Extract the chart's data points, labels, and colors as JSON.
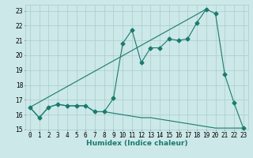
{
  "background_color": "#cce8e8",
  "grid_color": "#aacccc",
  "line_color": "#1a7a6e",
  "x_label": "Humidex (Indice chaleur)",
  "xlim": [
    -0.5,
    23.5
  ],
  "ylim": [
    15,
    23.4
  ],
  "yticks": [
    15,
    16,
    17,
    18,
    19,
    20,
    21,
    22,
    23
  ],
  "xticks": [
    0,
    1,
    2,
    3,
    4,
    5,
    6,
    7,
    8,
    9,
    10,
    11,
    12,
    13,
    14,
    15,
    16,
    17,
    18,
    19,
    20,
    21,
    22,
    23
  ],
  "series1_x": [
    0,
    1,
    2,
    3,
    4,
    5,
    6,
    7,
    8,
    9,
    10,
    11,
    12,
    13,
    14,
    15,
    16,
    17,
    18,
    19,
    20,
    21,
    22,
    23
  ],
  "series1_y": [
    16.5,
    15.8,
    16.5,
    16.7,
    16.6,
    16.6,
    16.6,
    16.2,
    16.2,
    17.1,
    20.8,
    21.7,
    19.5,
    20.5,
    20.5,
    21.1,
    21.0,
    21.1,
    22.2,
    23.1,
    22.8,
    18.7,
    16.8,
    15.1
  ],
  "series2_x": [
    0,
    1,
    2,
    3,
    4,
    5,
    6,
    7,
    8,
    9,
    10,
    11,
    12,
    13,
    14,
    15,
    16,
    17,
    18,
    19,
    20,
    21,
    22,
    23
  ],
  "series2_y": [
    16.5,
    15.8,
    16.5,
    16.7,
    16.6,
    16.6,
    16.6,
    16.2,
    16.2,
    16.1,
    16.0,
    15.9,
    15.8,
    15.8,
    15.7,
    15.6,
    15.5,
    15.4,
    15.3,
    15.2,
    15.1,
    15.1,
    15.1,
    15.1
  ],
  "series3_x": [
    0,
    19
  ],
  "series3_y": [
    16.5,
    23.1
  ],
  "marker": "D",
  "markersize": 2.5,
  "linewidth": 0.8,
  "tick_fontsize": 5.5,
  "xlabel_fontsize": 6.5
}
